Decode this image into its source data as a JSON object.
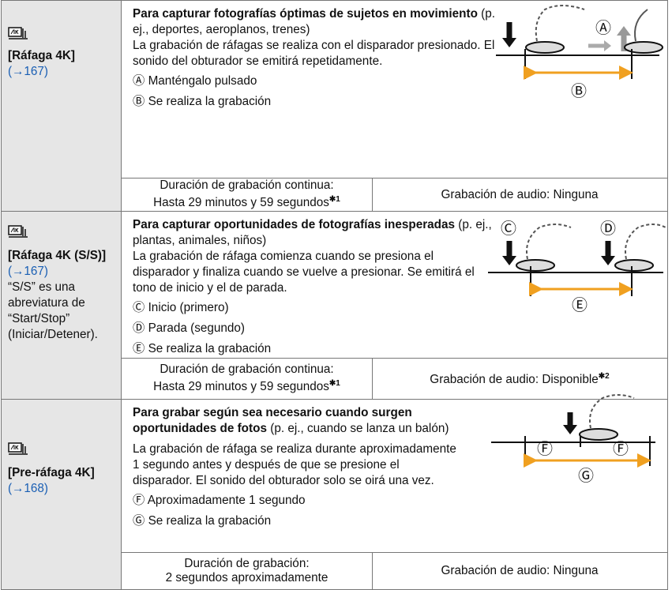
{
  "rows": [
    {
      "mode": "[Ráfaga 4K]",
      "ref": "(→167)",
      "note": null,
      "description": [
        {
          "bold": "Para capturar fotografías óptimas de sujetos en movimiento",
          "text": " (p. ej., deportes, aeroplanos, trenes)"
        },
        {
          "bold": null,
          "text": "La grabación de ráfagas se realiza con el disparador presionado. El sonido del obturador se emitirá repetidamente."
        }
      ],
      "legend": [
        {
          "mark": "Ⓐ",
          "text": "Manténgalo pulsado"
        },
        {
          "mark": "Ⓑ",
          "text": "Se realiza la grabación"
        }
      ],
      "diagram_labels": [
        "Ⓐ",
        "Ⓑ"
      ],
      "duration": {
        "label": "Duración de grabación continua:",
        "value": "Hasta 29 minutos y 59 segundos",
        "footnote": "✱1"
      },
      "audio": {
        "text": "Grabación de audio: Ninguna",
        "footnote": null
      }
    },
    {
      "mode": "[Ráfaga 4K (S/S)]",
      "ref": "(→167)",
      "note": "“S/S” es una abreviatura de “Start/Stop” (Iniciar/Detener).",
      "description": [
        {
          "bold": "Para capturar oportunidades de fotografías inesperadas",
          "text": " (p. ej., plantas, animales, niños)"
        },
        {
          "bold": null,
          "text": "La grabación de ráfaga comienza cuando se presiona el disparador y finaliza cuando se vuelve a presionar. Se emitirá el tono de inicio y el de parada."
        }
      ],
      "legend": [
        {
          "mark": "Ⓒ",
          "text": "Inicio (primero)"
        },
        {
          "mark": "Ⓓ",
          "text": "Parada (segundo)"
        },
        {
          "mark": "Ⓔ",
          "text": "Se realiza la grabación"
        }
      ],
      "diagram_labels": [
        "Ⓒ",
        "Ⓓ",
        "Ⓔ"
      ],
      "duration": {
        "label": "Duración de grabación continua:",
        "value": "Hasta 29 minutos y 59 segundos",
        "footnote": "✱1"
      },
      "audio": {
        "text": "Grabación de audio: Disponible",
        "footnote": "✱2"
      }
    },
    {
      "mode": "[Pre-ráfaga 4K]",
      "ref": "(→168)",
      "note": null,
      "description": [
        {
          "bold": "Para grabar según sea necesario cuando surgen oportunidades de fotos",
          "text": " (p. ej., cuando se lanza un balón)"
        },
        {
          "bold": null,
          "text": "La grabación de ráfaga se realiza durante aproximadamente 1 segundo antes y después de que se presione el disparador. El sonido del obturador solo se oirá una vez."
        }
      ],
      "legend": [
        {
          "mark": "Ⓕ",
          "text": "Aproximadamente 1 segundo"
        },
        {
          "mark": "Ⓖ",
          "text": "Se realiza la grabación"
        }
      ],
      "diagram_labels": [
        "Ⓕ",
        "Ⓕ",
        "Ⓖ"
      ],
      "duration": {
        "label": "Duración de grabación:",
        "value": "2 segundos aproximadamente",
        "footnote": null
      },
      "audio": {
        "text": "Grabación de audio: Ninguna",
        "footnote": null
      }
    }
  ]
}
